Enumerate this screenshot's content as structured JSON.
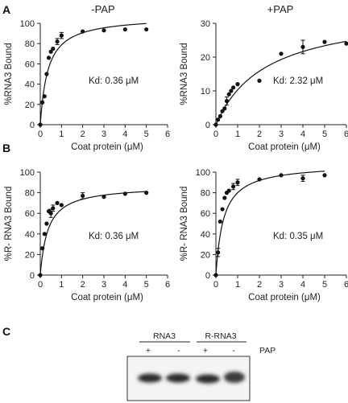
{
  "panel_labels": {
    "A": "A",
    "B": "B",
    "C": "C"
  },
  "column_titles": {
    "left": "-PAP",
    "right": "+PAP"
  },
  "chart_data": [
    {
      "type": "scatter",
      "panel": "A",
      "title": "-PAP",
      "xlabel": "Coat protein (μM)",
      "ylabel": "%RNA3 Bound",
      "xlim": [
        0,
        6
      ],
      "ylim": [
        0,
        100
      ],
      "xticks": [
        "0",
        "1",
        "2",
        "3",
        "4",
        "5",
        "6"
      ],
      "yticks": [
        "0",
        "20",
        "40",
        "60",
        "80",
        "100"
      ],
      "annotation": "Kd: 0.36 μM",
      "fit": {
        "kd": 0.36,
        "bmax": 107
      },
      "points": [
        {
          "x": 0,
          "y": 0,
          "err": 0
        },
        {
          "x": 0.1,
          "y": 22,
          "err": 0
        },
        {
          "x": 0.2,
          "y": 28,
          "err": 0
        },
        {
          "x": 0.3,
          "y": 50,
          "err": 0
        },
        {
          "x": 0.4,
          "y": 66,
          "err": 0
        },
        {
          "x": 0.5,
          "y": 72,
          "err": 0
        },
        {
          "x": 0.6,
          "y": 75,
          "err": 0
        },
        {
          "x": 0.8,
          "y": 82,
          "err": 3
        },
        {
          "x": 1.0,
          "y": 88,
          "err": 3
        },
        {
          "x": 2,
          "y": 92,
          "err": 0
        },
        {
          "x": 3,
          "y": 93,
          "err": 0
        },
        {
          "x": 4,
          "y": 94,
          "err": 0
        },
        {
          "x": 5,
          "y": 94,
          "err": 0
        }
      ]
    },
    {
      "type": "scatter",
      "panel": "A",
      "title": "+PAP",
      "xlabel": "Coat protein (μM)",
      "ylabel": "%RNA3 Bound",
      "xlim": [
        0,
        6
      ],
      "ylim": [
        0,
        30
      ],
      "xticks": [
        "0",
        "1",
        "2",
        "3",
        "4",
        "5",
        "6"
      ],
      "yticks": [
        "0",
        "10",
        "20",
        "30"
      ],
      "annotation": "Kd: 2.32 μM",
      "fit": {
        "kd": 2.32,
        "bmax": 34.2
      },
      "points": [
        {
          "x": 0,
          "y": 0,
          "err": 0
        },
        {
          "x": 0.1,
          "y": 1.5,
          "err": 0
        },
        {
          "x": 0.2,
          "y": 2.5,
          "err": 0
        },
        {
          "x": 0.3,
          "y": 4,
          "err": 0
        },
        {
          "x": 0.4,
          "y": 4.8,
          "err": 0
        },
        {
          "x": 0.5,
          "y": 7,
          "err": 1.2
        },
        {
          "x": 0.6,
          "y": 9,
          "err": 0
        },
        {
          "x": 0.7,
          "y": 10,
          "err": 0
        },
        {
          "x": 0.8,
          "y": 11,
          "err": 0
        },
        {
          "x": 1.0,
          "y": 12,
          "err": 0
        },
        {
          "x": 2,
          "y": 13,
          "err": 0
        },
        {
          "x": 3,
          "y": 21,
          "err": 0
        },
        {
          "x": 4,
          "y": 23,
          "err": 2
        },
        {
          "x": 5,
          "y": 24.5,
          "err": 0
        },
        {
          "x": 6,
          "y": 24,
          "err": 0
        }
      ]
    },
    {
      "type": "scatter",
      "panel": "B",
      "title": "",
      "xlabel": "Coat protein (μM)",
      "ylabel": "%R- RNA3 Bound",
      "xlim": [
        0,
        6
      ],
      "ylim": [
        0,
        100
      ],
      "xticks": [
        "0",
        "1",
        "2",
        "3",
        "4",
        "5",
        "6"
      ],
      "yticks": [
        "0",
        "20",
        "40",
        "60",
        "80",
        "100"
      ],
      "annotation": "Kd: 0.36 μM",
      "fit": {
        "kd": 0.36,
        "bmax": 87
      },
      "points": [
        {
          "x": 0,
          "y": 0,
          "err": 0
        },
        {
          "x": 0.1,
          "y": 26,
          "err": 0
        },
        {
          "x": 0.2,
          "y": 40,
          "err": 0
        },
        {
          "x": 0.3,
          "y": 50,
          "err": 0
        },
        {
          "x": 0.4,
          "y": 62,
          "err": 0
        },
        {
          "x": 0.5,
          "y": 60,
          "err": 4
        },
        {
          "x": 0.6,
          "y": 65,
          "err": 3
        },
        {
          "x": 0.8,
          "y": 70,
          "err": 0
        },
        {
          "x": 1.0,
          "y": 68,
          "err": 0
        },
        {
          "x": 2,
          "y": 77,
          "err": 3
        },
        {
          "x": 3,
          "y": 76,
          "err": 0
        },
        {
          "x": 4,
          "y": 79,
          "err": 0
        },
        {
          "x": 5,
          "y": 80,
          "err": 0
        }
      ]
    },
    {
      "type": "scatter",
      "panel": "B",
      "title": "",
      "xlabel": "Coat protein (μM)",
      "ylabel": "%R- RNA3 Bound",
      "xlim": [
        0,
        6
      ],
      "ylim": [
        0,
        100
      ],
      "xticks": [
        "0",
        "1",
        "2",
        "3",
        "4",
        "5",
        "6"
      ],
      "yticks": [
        "0",
        "20",
        "40",
        "60",
        "80",
        "100"
      ],
      "annotation": "Kd: 0.35 μM",
      "fit": {
        "kd": 0.35,
        "bmax": 108
      },
      "points": [
        {
          "x": 0,
          "y": 0,
          "err": 0
        },
        {
          "x": 0.1,
          "y": 22,
          "err": 4
        },
        {
          "x": 0.2,
          "y": 52,
          "err": 0
        },
        {
          "x": 0.3,
          "y": 64,
          "err": 0
        },
        {
          "x": 0.4,
          "y": 75,
          "err": 0
        },
        {
          "x": 0.5,
          "y": 80,
          "err": 0
        },
        {
          "x": 0.6,
          "y": 82,
          "err": 0
        },
        {
          "x": 0.8,
          "y": 86,
          "err": 3
        },
        {
          "x": 1.0,
          "y": 90,
          "err": 3
        },
        {
          "x": 2,
          "y": 93,
          "err": 0
        },
        {
          "x": 3,
          "y": 97,
          "err": 0
        },
        {
          "x": 4,
          "y": 94,
          "err": 3
        },
        {
          "x": 5,
          "y": 97,
          "err": 0
        }
      ]
    }
  ],
  "gel": {
    "groups": [
      "RNA3",
      "R-RNA3"
    ],
    "lane_marks": [
      "+",
      "-",
      "+",
      "-"
    ],
    "row_label": "PAP"
  }
}
